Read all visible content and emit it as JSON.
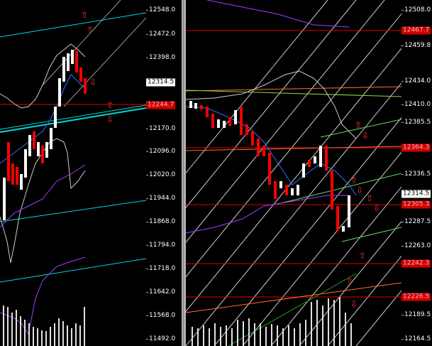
{
  "left_chart": {
    "price_ticks": [
      "12548.0",
      "12472.0",
      "12398.0",
      "12170.0",
      "12096.0",
      "12020.0",
      "11944.0",
      "11868.0",
      "11794.0",
      "11718.0",
      "11642.0",
      "11568.0",
      "11492.0"
    ],
    "current_price": "12314.5",
    "level_label": "12244.7",
    "icons": [
      "arrow-up-icon",
      "arrow-down-icon"
    ],
    "colors": {
      "up_candle": "#ffffff",
      "down_candle": "#ff0000",
      "trend_cyan": "#00d8d8",
      "level_red": "#e00000",
      "ma_purple": "#a040ff"
    }
  },
  "right_chart": {
    "price_ticks": [
      "12508.0",
      "12459.8",
      "12434.0",
      "12410.0",
      "12385.5",
      "12336.5",
      "12287.5",
      "12263.0",
      "12189.5",
      "12164.5"
    ],
    "current_price": "12314.5",
    "level_labels": [
      "12467.7",
      "12364.3",
      "12305.3",
      "12242.3",
      "12226.5"
    ],
    "colors": {
      "up_candle": "#ffffff",
      "down_candle": "#ff0000",
      "grid_diag": "#d0d0d0",
      "level_red": "#e00000",
      "fib_orange": "#ff7030",
      "trend_green": "#60e060"
    }
  }
}
